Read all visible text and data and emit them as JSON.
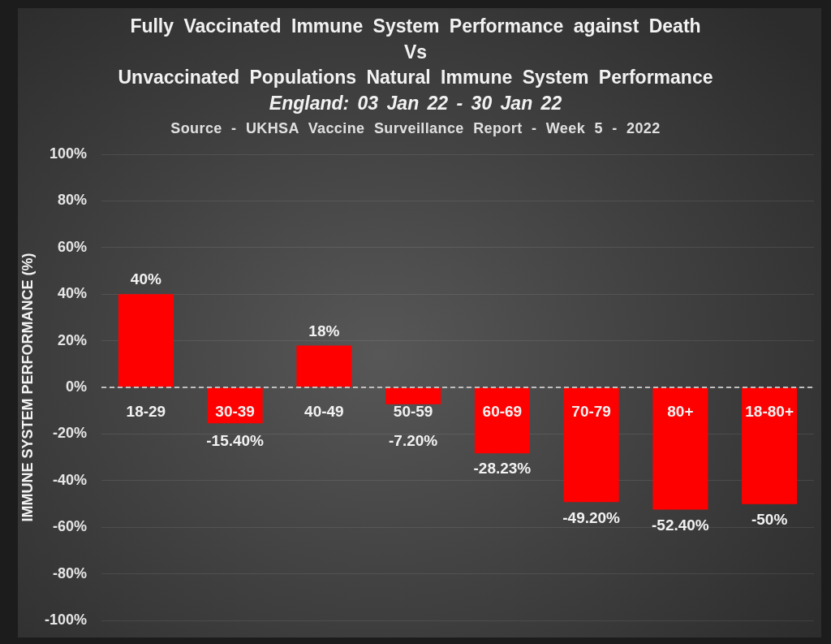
{
  "chart_data": {
    "type": "bar",
    "title": "Fully Vaccinated Immune System Performance against Death\nVs\nUnvaccinated Populations Natural Immune System Performance",
    "subtitle": "England: 03 Jan 22 - 30 Jan 22",
    "annotations": [
      "Source - UKHSA Vaccine Surveillance Report - Week 5 - 2022"
    ],
    "ylabel": "IMMUNE SYSTEM PERFORMANCE (%)",
    "categories": [
      "18-29",
      "30-39",
      "40-49",
      "50-59",
      "60-69",
      "70-79",
      "80+",
      "18-80+"
    ],
    "values": [
      40,
      -15.4,
      18,
      -7.2,
      -28.23,
      -49.2,
      -52.4,
      -50
    ],
    "color": "#ff0000",
    "value_labels": [
      "40%",
      "-15.40%",
      "18%",
      "-7.20%",
      "-28.23%",
      "-49.20%",
      "-52.40%",
      "-50%"
    ],
    "ylim": [
      -100,
      100
    ],
    "yticks": [
      {
        "value": -100,
        "label": "-100%"
      },
      {
        "value": -80,
        "label": "-80%"
      },
      {
        "value": -60,
        "label": "-60%"
      },
      {
        "value": -40,
        "label": "-40%"
      },
      {
        "value": -20,
        "label": "-20%"
      },
      {
        "value": 0,
        "label": "0%"
      },
      {
        "value": 20,
        "label": "20%"
      },
      {
        "value": 40,
        "label": "40%"
      },
      {
        "value": 60,
        "label": "60%"
      },
      {
        "value": 80,
        "label": "80%"
      },
      {
        "value": 100,
        "label": "100%"
      }
    ],
    "grid": "y",
    "ref_lines": [
      {
        "axis": "y",
        "value": 0,
        "color": "#bfbfbf",
        "line_style": "dashed"
      }
    ]
  }
}
